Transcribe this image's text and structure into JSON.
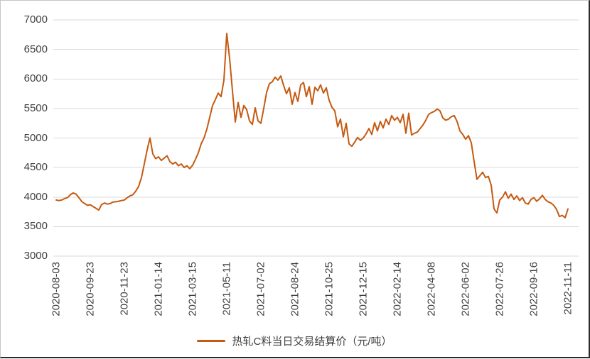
{
  "chart": {
    "legend_label": "热轧C料当日交易结算价（元/吨）",
    "line_color": "#C55A11",
    "grid_color": "#D9D9D9",
    "text_color": "#3F3F3F",
    "background": "#FFFFFF"
  },
  "chart_data": {
    "type": "line",
    "title": "",
    "series_name": "热轧C料当日交易结算价（元/吨）",
    "ylabel": "元/吨",
    "xlabel": "",
    "ylim": [
      3000,
      7000
    ],
    "y_ticks": [
      7000,
      6500,
      6000,
      5500,
      5000,
      4500,
      4000,
      3500,
      3000
    ],
    "grid": true,
    "legend_position": "bottom",
    "x_tick_labels": [
      "2020-08-03",
      "2020-09-23",
      "2020-11-23",
      "2021-01-14",
      "2021-03-15",
      "2021-05-11",
      "2021-07-02",
      "2021-08-24",
      "2021-10-25",
      "2021-12-15",
      "2022-02-14",
      "2022-04-08",
      "2022-06-02",
      "2022-07-26",
      "2022-09-16",
      "2022-11-11"
    ],
    "points_per_tick": 12,
    "values": [
      3950,
      3940,
      3950,
      3975,
      3990,
      4040,
      4070,
      4050,
      3990,
      3925,
      3890,
      3860,
      3870,
      3840,
      3810,
      3780,
      3875,
      3900,
      3880,
      3890,
      3915,
      3920,
      3930,
      3940,
      3950,
      3990,
      4020,
      4040,
      4100,
      4180,
      4330,
      4560,
      4800,
      5000,
      4730,
      4650,
      4680,
      4620,
      4660,
      4700,
      4600,
      4560,
      4590,
      4530,
      4560,
      4500,
      4530,
      4480,
      4540,
      4640,
      4750,
      4900,
      5000,
      5150,
      5350,
      5550,
      5650,
      5760,
      5700,
      5980,
      6770,
      6350,
      5800,
      5270,
      5600,
      5350,
      5550,
      5480,
      5290,
      5230,
      5510,
      5290,
      5250,
      5500,
      5770,
      5920,
      5950,
      6030,
      5980,
      6050,
      5890,
      5750,
      5850,
      5570,
      5770,
      5620,
      5900,
      5940,
      5700,
      5870,
      5570,
      5860,
      5800,
      5900,
      5760,
      5850,
      5640,
      5520,
      5460,
      5190,
      5320,
      5020,
      5250,
      4900,
      4860,
      4930,
      5010,
      4960,
      5000,
      5070,
      5160,
      5060,
      5260,
      5120,
      5280,
      5170,
      5320,
      5230,
      5380,
      5300,
      5350,
      5260,
      5400,
      5080,
      5420,
      5050,
      5080,
      5100,
      5160,
      5220,
      5300,
      5400,
      5430,
      5450,
      5490,
      5460,
      5340,
      5300,
      5320,
      5360,
      5380,
      5280,
      5120,
      5060,
      4980,
      5040,
      4920,
      4600,
      4300,
      4360,
      4420,
      4330,
      4350,
      4200,
      3800,
      3730,
      3950,
      4000,
      4090,
      3980,
      4050,
      3960,
      4020,
      3940,
      3990,
      3900,
      3880,
      3960,
      3990,
      3930,
      3970,
      4030,
      3960,
      3920,
      3900,
      3860,
      3790,
      3670,
      3690,
      3650,
      3800
    ]
  }
}
